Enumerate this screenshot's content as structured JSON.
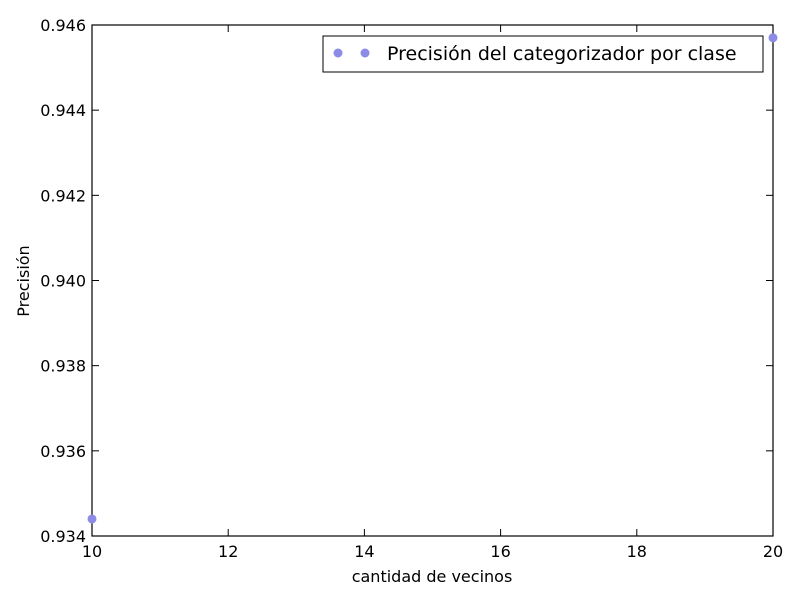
{
  "chart_data": {
    "type": "scatter",
    "title": "",
    "xlabel": "cantidad de vecinos",
    "ylabel": "Precisión",
    "xlim": [
      10,
      20
    ],
    "ylim": [
      0.934,
      0.946
    ],
    "xticks": [
      10,
      12,
      14,
      16,
      18,
      20
    ],
    "yticks": [
      0.934,
      0.936,
      0.938,
      0.94,
      0.942,
      0.944,
      0.946
    ],
    "ytick_labels": [
      "0.934",
      "0.936",
      "0.938",
      "0.940",
      "0.942",
      "0.944",
      "0.946"
    ],
    "grid": false,
    "legend": {
      "position": "top-right"
    },
    "series": [
      {
        "name": "Precisión del categorizador por clase",
        "color": "#8c8ce6",
        "x": [
          10,
          20
        ],
        "y": [
          0.9344,
          0.9457
        ]
      }
    ]
  }
}
